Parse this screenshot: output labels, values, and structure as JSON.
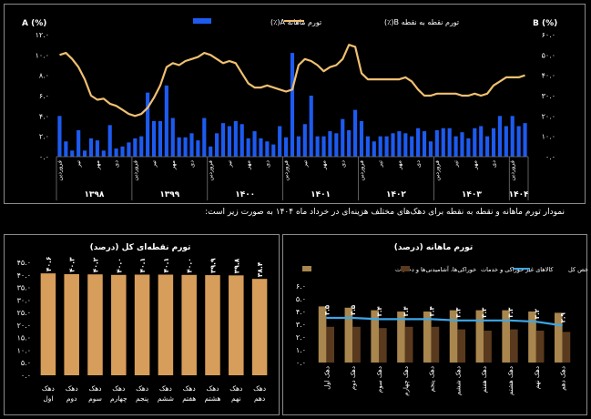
{
  "caption": "نمودار تورم ماهانه و نقطه به نقطه برای دهک‌های مختلف هزینه‌ای در خرداد ماه ۱۴۰۴ به صورت زیر است:",
  "chart_data": [
    {
      "type": "bar+line",
      "title": "",
      "left_axis_label": "A (%)",
      "right_axis_label": "B (%)",
      "legend": [
        "تورم ماهانه A(٪)",
        "تورم نقطه به نقطه B(٪)"
      ],
      "ylim_left": [
        0,
        12
      ],
      "ylim_right": [
        0,
        60
      ],
      "yticks_left": [
        "۰.۰",
        "۲.۰",
        "۴.۰",
        "۶.۰",
        "۸.۰",
        "۱۰.۰",
        "۱۲.۰"
      ],
      "yticks_right": [
        "۰.۰",
        "۱۰.۰",
        "۲۰.۰",
        "۳۰.۰",
        "۴۰.۰",
        "۵۰.۰",
        "۶۰.۰"
      ],
      "years": [
        {
          "label": "۱۳۹۸",
          "months": 12
        },
        {
          "label": "۱۳۹۹",
          "months": 12
        },
        {
          "label": "۱۴۰۰",
          "months": 12
        },
        {
          "label": "۱۴۰۱",
          "months": 12
        },
        {
          "label": "۱۴۰۲",
          "months": 12
        },
        {
          "label": "۱۴۰۳",
          "months": 12
        },
        {
          "label": "۱۴۰۴",
          "months": 3
        }
      ],
      "month_labels": [
        "فروردین",
        "تیر",
        "مهر",
        "دی"
      ],
      "monthly_A": [
        4.0,
        1.5,
        0.6,
        2.6,
        0.6,
        1.8,
        1.6,
        0.6,
        3.1,
        0.8,
        1.0,
        1.4,
        1.8,
        2.0,
        6.3,
        3.5,
        3.5,
        7.0,
        3.8,
        1.9,
        1.9,
        2.3,
        1.6,
        3.8,
        1.0,
        2.3,
        3.3,
        3.0,
        3.5,
        3.2,
        1.8,
        2.5,
        1.8,
        1.5,
        1.2,
        3.0,
        1.9,
        10.2,
        2.0,
        3.2,
        6.0,
        2.0,
        2.0,
        2.5,
        2.3,
        3.7,
        2.6,
        4.6,
        3.5,
        2.0,
        1.5,
        2.0,
        2.0,
        2.3,
        2.5,
        2.3,
        2.0,
        2.8,
        2.5,
        1.5,
        2.6,
        2.8,
        2.8,
        2.0,
        2.4,
        1.8,
        2.8,
        3.0,
        2.0,
        2.8,
        4.0,
        3.0,
        4.0,
        3.0,
        3.3
      ],
      "yoy_B": [
        50,
        51,
        48,
        44,
        38,
        30,
        28,
        28.5,
        26,
        25,
        23,
        21,
        20,
        21,
        24,
        29,
        35,
        44,
        46,
        45,
        47,
        48,
        49,
        51,
        50,
        48,
        46,
        47,
        46,
        41,
        36,
        34,
        34,
        35,
        34,
        33,
        32,
        33,
        45,
        48,
        47,
        45,
        42,
        44,
        45,
        48,
        55,
        54,
        41,
        38,
        38,
        38,
        38,
        38,
        38,
        39,
        37,
        33,
        30,
        30,
        31,
        31,
        31,
        31,
        30,
        30,
        31,
        30,
        31,
        35,
        37,
        39,
        39,
        39,
        40
      ]
    },
    {
      "type": "bar",
      "title": "تورم نقطه‌ای کل (درصد)",
      "categories": [
        "دهک اول",
        "دهک دوم",
        "دهک سوم",
        "دهک چهارم",
        "دهک پنجم",
        "دهک ششم",
        "دهک هفتم",
        "دهک هشتم",
        "دهک نهم",
        "دهک دهم"
      ],
      "values": [
        40.6,
        40.3,
        40.2,
        40.0,
        40.1,
        40.1,
        40.0,
        39.9,
        39.8,
        38.4
      ],
      "value_labels": [
        "۴۰.۶",
        "۴۰.۳",
        "۴۰.۲",
        "۴۰.۰",
        "۴۰.۱",
        "۴۰.۱",
        "۴۰.۰",
        "۳۹.۹",
        "۳۹.۸",
        "۳۸.۴"
      ],
      "ylim": [
        0,
        45
      ],
      "yticks": [
        "۰.۰",
        "۵.۰",
        "۱۰.۰",
        "۱۵.۰",
        "۲۰.۰",
        "۲۵.۰",
        "۳۰.۰",
        "۳۵.۰",
        "۴۰.۰",
        "۴۵.۰"
      ]
    },
    {
      "type": "bar+line",
      "title": "تورم ماهانه (درصد)",
      "categories": [
        "دهک اول",
        "دهک دوم",
        "دهک سوم",
        "دهک چهارم",
        "دهک پنجم",
        "دهک ششم",
        "دهک هفتم",
        "دهک هشتم",
        "دهک نهم",
        "دهک دهم"
      ],
      "series": [
        {
          "name": "خوراکی‌ها، آشامیدنی‌ها و دخانیات",
          "values": [
            4.4,
            4.3,
            4.1,
            4.0,
            4.0,
            4.1,
            4.1,
            4.1,
            4.0,
            3.9
          ]
        },
        {
          "name": "کالاهای غیر خوراکی و خدمات",
          "values": [
            2.8,
            2.8,
            2.7,
            2.8,
            2.8,
            2.6,
            2.5,
            2.6,
            2.5,
            2.4
          ]
        },
        {
          "name": "شاخص کل",
          "values": [
            3.5,
            3.5,
            3.4,
            3.4,
            3.4,
            3.3,
            3.3,
            3.3,
            3.2,
            2.9
          ]
        }
      ],
      "line_labels": [
        "۳.۵",
        "۳.۵",
        "۳.۴",
        "۳.۴",
        "۳.۴",
        "۳.۳",
        "۳.۳",
        "۳.۳",
        "۳.۲",
        "۲.۹"
      ],
      "ylim": [
        0,
        6
      ],
      "yticks": [
        "۰.۰",
        "۱.۰",
        "۲.۰",
        "۳.۰",
        "۴.۰",
        "۵.۰",
        "۶.۰"
      ]
    }
  ],
  "colors": {
    "blue": "#1d5bf0",
    "gold": "#f0c070",
    "tan": "#d79d5a",
    "food": "#a8864e",
    "nonfood": "#5a3a1e",
    "line": "#3da6e8",
    "border": "#8a8a8a"
  }
}
